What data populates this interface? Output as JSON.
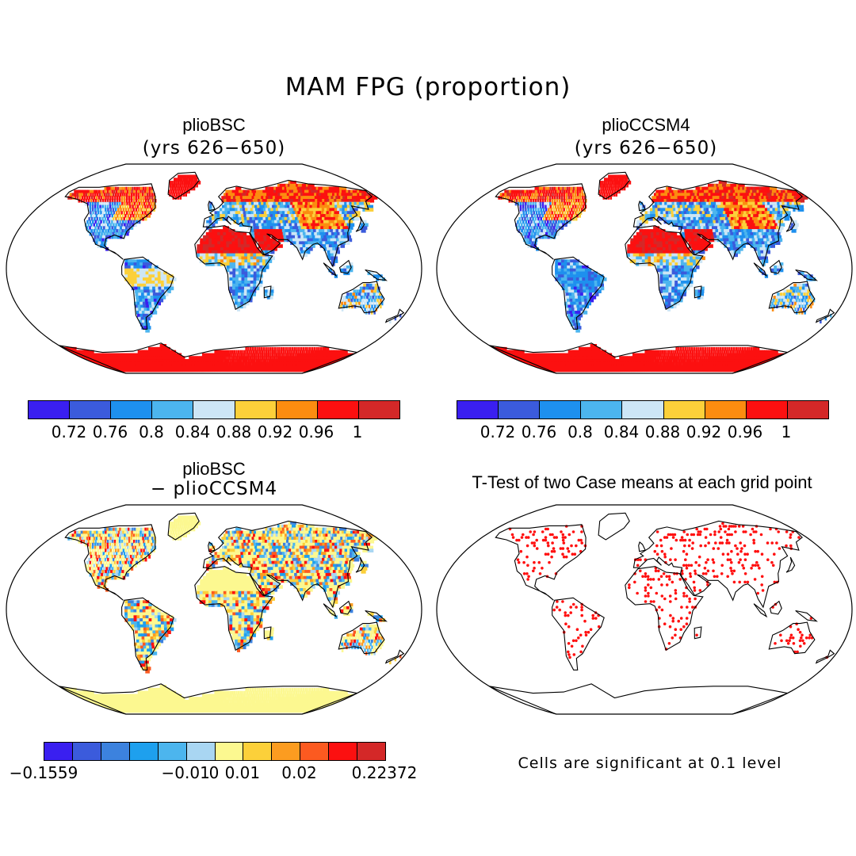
{
  "title": "MAM FPG (proportion)",
  "panels": [
    {
      "id": "a",
      "title": "plioBSC",
      "subtitle": "(yrs 626−650)"
    },
    {
      "id": "b",
      "title": "plioCCSM4",
      "subtitle": "(yrs 626−650)"
    },
    {
      "id": "c",
      "title": "plioBSC",
      "subtitle": "− plioCCSM4"
    },
    {
      "id": "d",
      "title": "T-Test of two Case means at each grid point",
      "subtitle": ""
    }
  ],
  "colorbar_top": {
    "colors": [
      "#3a1ff0",
      "#3b5bdc",
      "#1e90ee",
      "#4cb5ee",
      "#cde6f6",
      "#fcd03a",
      "#fc8c10",
      "#fc1010",
      "#d42828"
    ],
    "labels": [
      "0.72",
      "0.76",
      "0.8",
      "0.84",
      "0.88",
      "0.92",
      "0.96",
      "1"
    ]
  },
  "colorbar_diff": {
    "colors": [
      "#3a1ff0",
      "#3b5bdc",
      "#3c82de",
      "#1ea0ee",
      "#4cb5ee",
      "#a9d6f2",
      "#fcf890",
      "#fcd03a",
      "#fc9c20",
      "#fc5a20",
      "#fc1010",
      "#d42828"
    ],
    "labels": [
      "−0.1559",
      "−0.01",
      "0",
      "0.01",
      "0.02",
      "0.22372"
    ]
  },
  "ttest_note": "Cells are significant at 0.1 level",
  "colors": {
    "significant_cell": "#ff1010",
    "coast": "#000000"
  }
}
